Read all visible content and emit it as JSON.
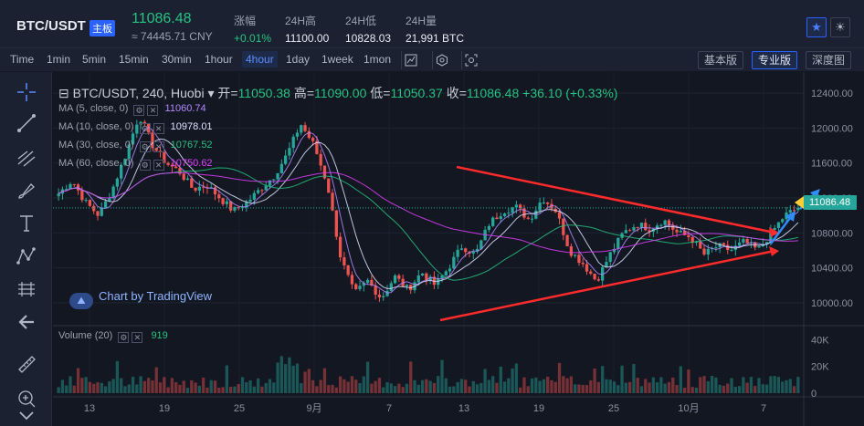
{
  "header": {
    "pair": "BTC/USDT",
    "badge": "主板",
    "price": "11086.48",
    "cny": "≈ 74445.71 CNY",
    "stats": [
      {
        "label": "涨幅",
        "value": "+0.01%",
        "up": true
      },
      {
        "label": "24H高",
        "value": "11100.00",
        "up": false
      },
      {
        "label": "24H低",
        "value": "10828.03",
        "up": false
      },
      {
        "label": "24H量",
        "value": "21,991 BTC",
        "up": false
      }
    ]
  },
  "toolbar": {
    "timeframes": [
      "Time",
      "1min",
      "5min",
      "15min",
      "30min",
      "1hour",
      "4hour",
      "1day",
      "1week",
      "1mon"
    ],
    "active": "4hour",
    "views": [
      "基本版",
      "专业版",
      "深度图"
    ],
    "active_view": "专业版"
  },
  "chart": {
    "symbol": "BTC/USDT, 240, Huobi",
    "open_label": "开=",
    "open": "11050.38",
    "high_label": "高=",
    "high": "11090.00",
    "low_label": "低=",
    "low": "11050.37",
    "close_label": "收=",
    "close": "11086.48",
    "change": "+36.10 (+0.33%)",
    "ma": [
      {
        "label": "MA (5, close, 0)",
        "value": "11060.74",
        "color": "#b388ff"
      },
      {
        "label": "MA (10, close, 0)",
        "value": "10978.01",
        "color": "#e0e0ff"
      },
      {
        "label": "MA (30, close, 0)",
        "value": "10767.52",
        "color": "#26c281"
      },
      {
        "label": "MA (60, close, 0)",
        "value": "10750.62",
        "color": "#e040fb"
      }
    ],
    "watermark": "Chart by TradingView",
    "volume_label": "Volume (20)",
    "volume_value": "919",
    "last_price_tag": "11086.48",
    "price_axis": [
      "12400.00",
      "12000.00",
      "11600.00",
      "11200.00",
      "10800.00",
      "10400.00",
      "10000.00"
    ],
    "volume_axis": [
      "40K",
      "20K",
      "0"
    ],
    "time_axis": [
      "13",
      "19",
      "25",
      "9月",
      "7",
      "13",
      "19",
      "25",
      "10月",
      "7"
    ]
  },
  "chart_data": {
    "type": "candlestick",
    "price_range": [
      9800,
      12600
    ],
    "volume_range": [
      0,
      45000
    ],
    "close_path": [
      11250,
      11400,
      11150,
      11000,
      11300,
      11700,
      12150,
      11800,
      11600,
      11500,
      11300,
      11350,
      11200,
      11050,
      11150,
      11300,
      11450,
      11700,
      12050,
      11800,
      11350,
      10500,
      10100,
      10250,
      10050,
      10300,
      10150,
      10350,
      10200,
      10400,
      10650,
      10550,
      10900,
      11050,
      11100,
      10950,
      11200,
      11050,
      10600,
      10450,
      10250,
      10550,
      10800,
      10900,
      10850,
      10950,
      10800,
      10750,
      10550,
      10650,
      10600,
      10700,
      10600,
      10800,
      11000,
      11086
    ]
  }
}
